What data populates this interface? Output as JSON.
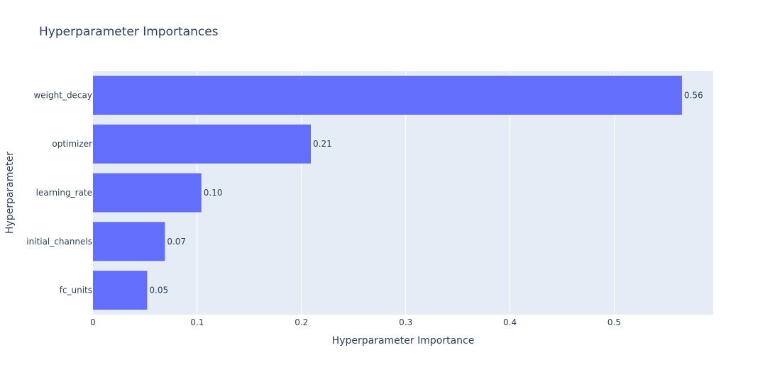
{
  "chart_data": {
    "type": "bar",
    "orientation": "horizontal",
    "title": "Hyperparameter Importances",
    "xlabel": "Hyperparameter Importance",
    "ylabel": "Hyperparameter",
    "categories": [
      "weight_decay",
      "optimizer",
      "learning_rate",
      "initial_channels",
      "fc_units"
    ],
    "values": [
      0.565,
      0.209,
      0.104,
      0.069,
      0.052
    ],
    "data_labels": [
      "0.56",
      "0.21",
      "0.10",
      "0.07",
      "0.05"
    ],
    "xlim": [
      0,
      0.595
    ],
    "xticks": [
      0,
      0.1,
      0.2,
      0.3,
      0.4,
      0.5
    ],
    "xtick_labels": [
      "0",
      "0.1",
      "0.2",
      "0.3",
      "0.4",
      "0.5"
    ],
    "grid": true,
    "legend": "none",
    "colors": {
      "bar": "#636efa",
      "plot_background": "#e5ecf6",
      "text": "#2a3f5f",
      "grid": "#ffffff"
    }
  }
}
